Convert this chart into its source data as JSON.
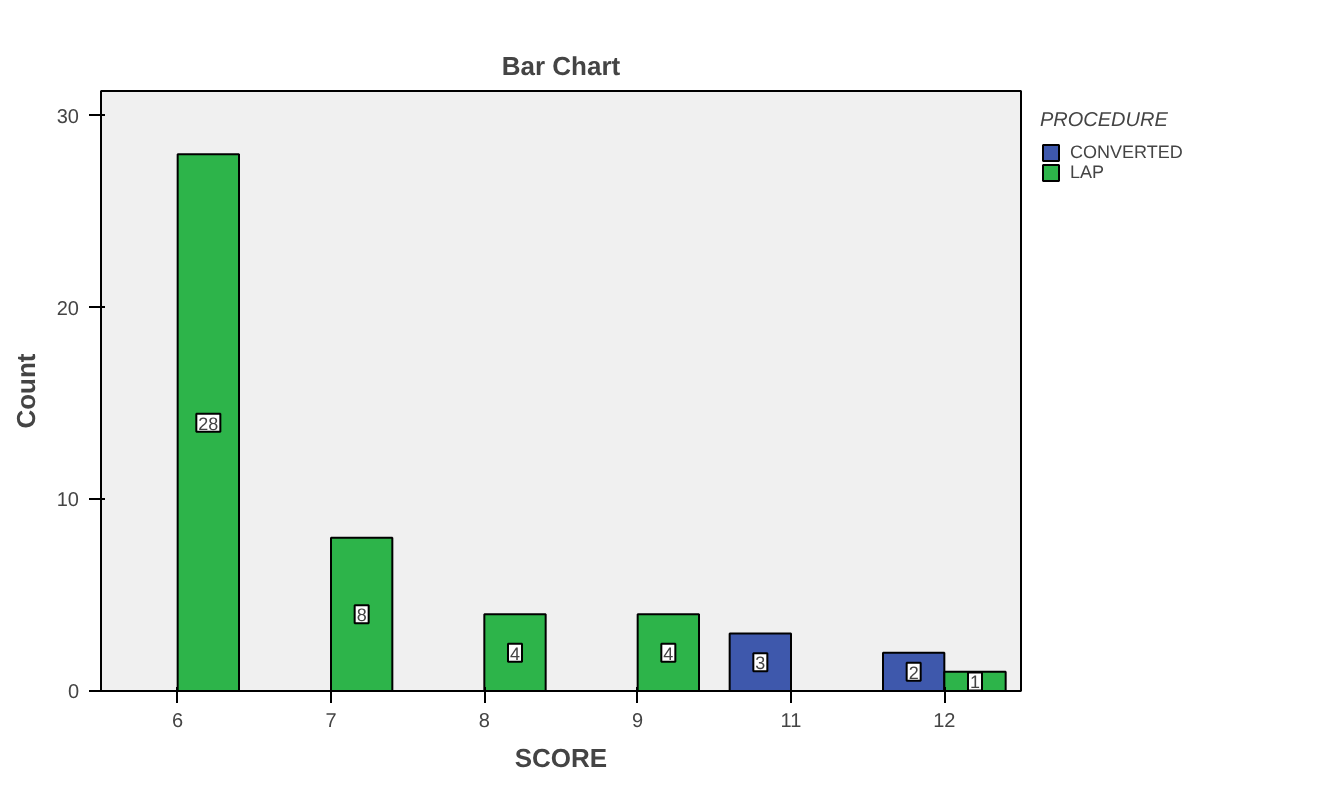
{
  "chart_data": {
    "type": "bar",
    "title": "Bar Chart",
    "xlabel": "SCORE",
    "ylabel": "Count",
    "legend_title": "PROCEDURE",
    "categories": [
      "6",
      "7",
      "8",
      "9",
      "11",
      "12"
    ],
    "series": [
      {
        "name": "CONVERTED",
        "color": "#3e58ac",
        "values": [
          null,
          null,
          null,
          null,
          3,
          2
        ]
      },
      {
        "name": "LAP",
        "color": "#2db44a",
        "values": [
          28,
          8,
          4,
          4,
          null,
          1
        ]
      }
    ],
    "ylim": [
      0,
      31.3
    ],
    "yticks": [
      0,
      10,
      20,
      30
    ],
    "data_labels": true,
    "legend": "top right",
    "grid": false
  }
}
